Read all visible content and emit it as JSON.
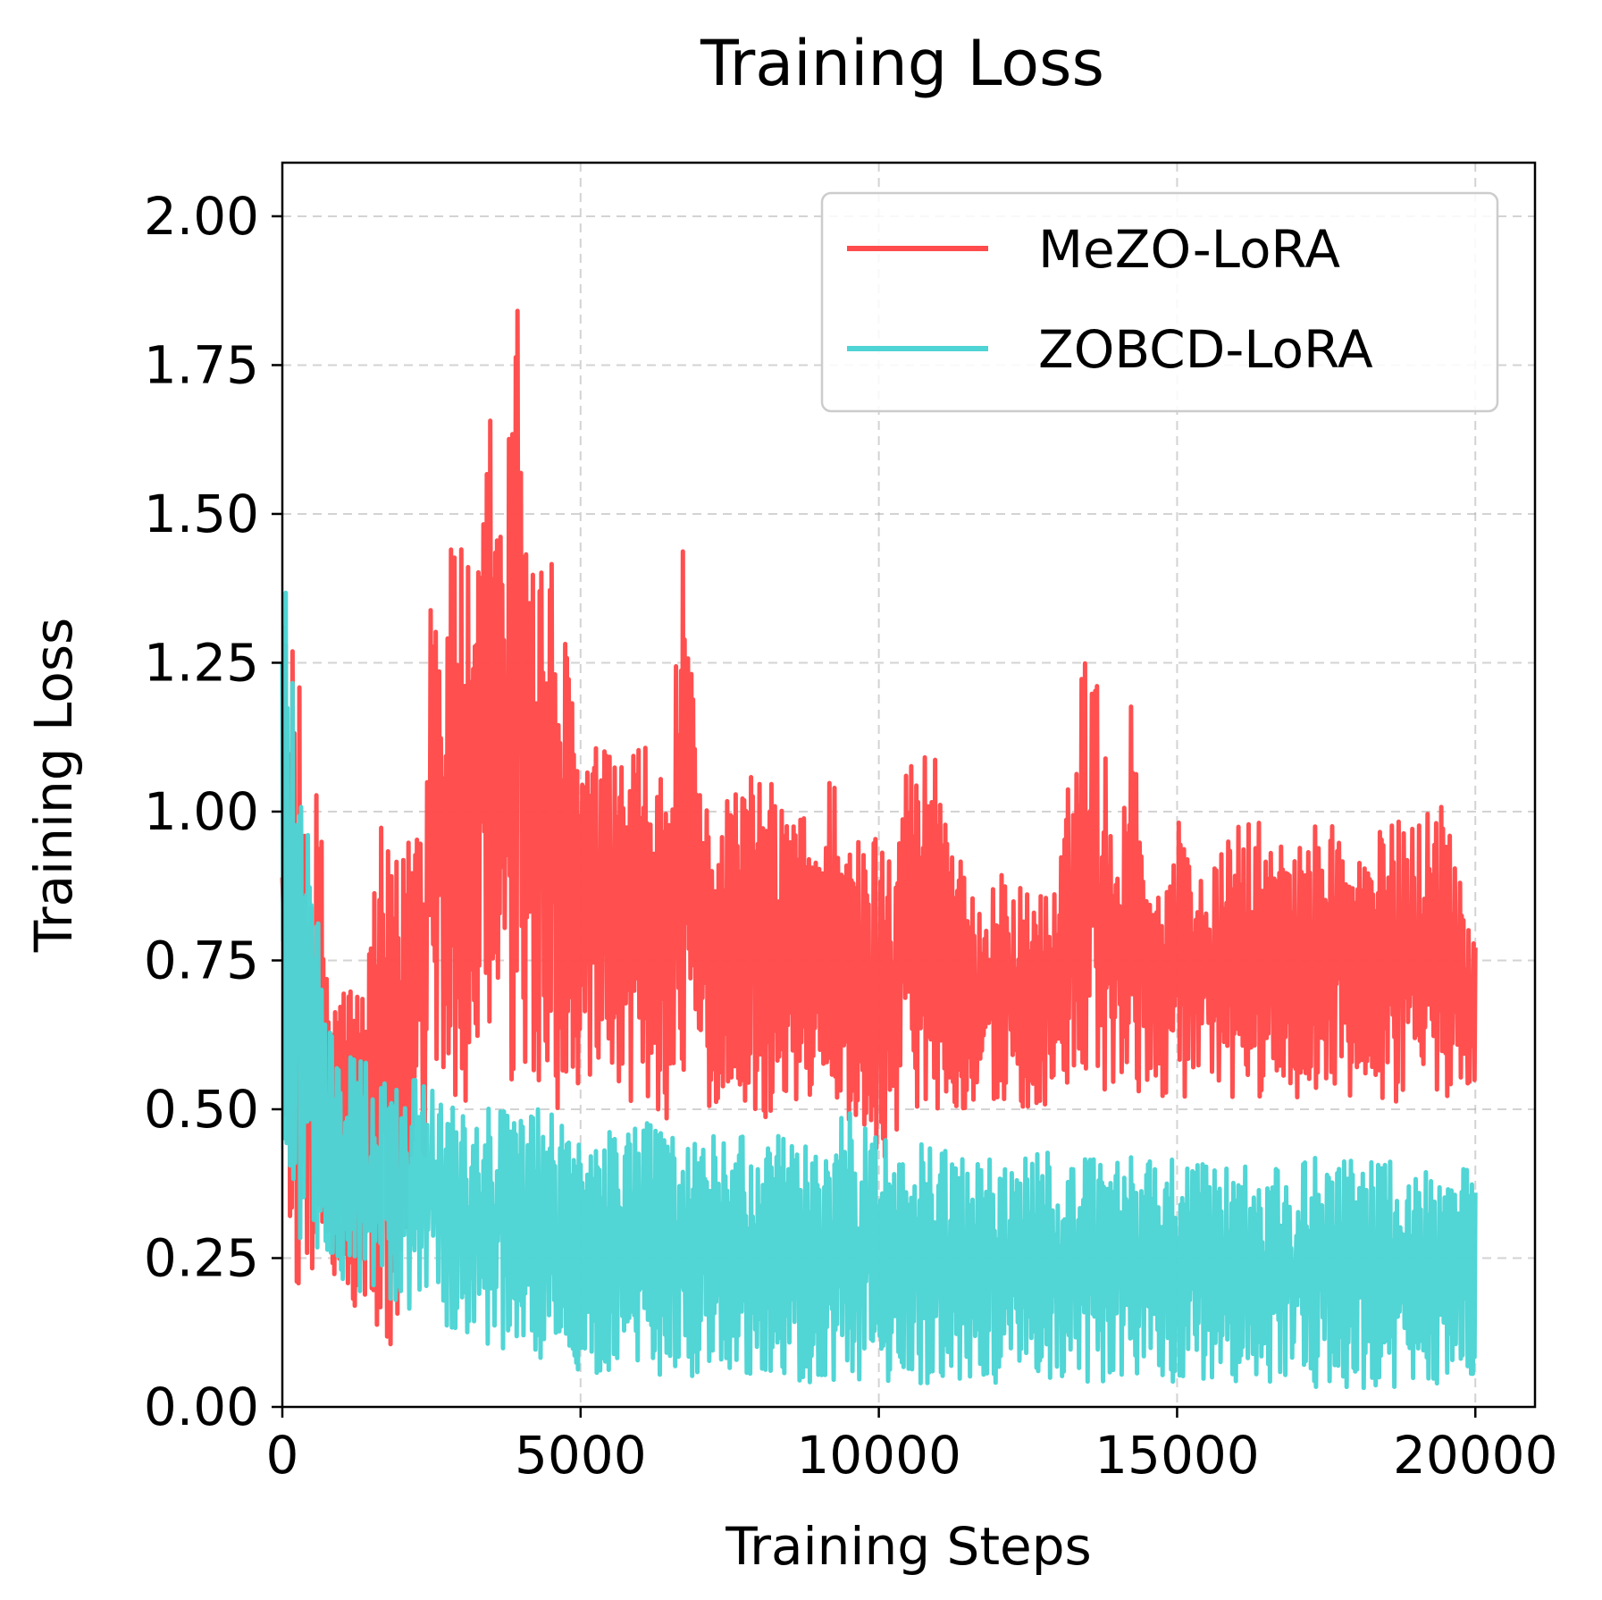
{
  "chart_data": {
    "type": "line",
    "title": "Training Loss",
    "xlabel": "Training Steps",
    "ylabel": "Training Loss",
    "xlim": [
      0,
      21000
    ],
    "ylim": [
      0,
      2.09
    ],
    "xticks": [
      0,
      5000,
      10000,
      15000,
      20000
    ],
    "xtick_labels": [
      "0",
      "5000",
      "10000",
      "15000",
      "20000"
    ],
    "yticks": [
      0.0,
      0.25,
      0.5,
      0.75,
      1.0,
      1.25,
      1.5,
      1.75,
      2.0
    ],
    "ytick_labels": [
      "0.00",
      "0.25",
      "0.50",
      "0.75",
      "1.00",
      "1.25",
      "1.50",
      "1.75",
      "2.00"
    ],
    "grid": true,
    "legend_position": "top-right",
    "series": [
      {
        "name": "MeZO-LoRA",
        "color": "#ff4b4b",
        "x": [
          0,
          100,
          200,
          300,
          400,
          500,
          600,
          700,
          800,
          900,
          1000,
          1200,
          1400,
          1500,
          1600,
          1800,
          2000,
          2200,
          2400,
          2500,
          2700,
          3000,
          3200,
          3500,
          3700,
          4000,
          4200,
          4500,
          5000,
          5500,
          6000,
          6500,
          6700,
          7000,
          7500,
          8000,
          8500,
          9000,
          9300,
          9500,
          10000,
          10500,
          11000,
          11500,
          12000,
          12500,
          13000,
          13500,
          14000,
          14300,
          14500,
          15000,
          15500,
          16000,
          16500,
          17000,
          17500,
          18000,
          18500,
          19000,
          19500,
          20000
        ],
        "upper": [
          1.35,
          1.3,
          1.28,
          1.2,
          1.05,
          0.98,
          1.07,
          0.9,
          0.75,
          0.72,
          0.72,
          0.75,
          0.7,
          0.87,
          0.99,
          0.93,
          0.92,
          1.06,
          1.1,
          1.5,
          1.35,
          1.57,
          1.3,
          1.73,
          1.49,
          1.98,
          1.5,
          1.45,
          1.14,
          1.1,
          1.12,
          1.05,
          1.46,
          1.03,
          1.05,
          1.07,
          1.02,
          0.98,
          1.14,
          0.95,
          0.98,
          1.1,
          1.14,
          0.85,
          0.9,
          0.87,
          0.88,
          1.35,
          0.95,
          1.26,
          0.85,
          1.0,
          0.88,
          0.99,
          0.98,
          0.93,
          1.02,
          0.93,
          0.98,
          1.0,
          1.04,
          0.8
        ],
        "lower": [
          0.4,
          0.22,
          0.2,
          0.18,
          0.2,
          0.22,
          0.2,
          0.25,
          0.22,
          0.2,
          0.2,
          0.15,
          0.13,
          0.1,
          0.1,
          0.08,
          0.06,
          0.35,
          0.4,
          0.45,
          0.48,
          0.5,
          0.5,
          0.52,
          0.5,
          0.48,
          0.5,
          0.5,
          0.5,
          0.5,
          0.5,
          0.48,
          0.48,
          0.5,
          0.5,
          0.48,
          0.5,
          0.52,
          0.5,
          0.48,
          0.4,
          0.5,
          0.5,
          0.5,
          0.5,
          0.5,
          0.5,
          0.5,
          0.52,
          0.52,
          0.52,
          0.52,
          0.52,
          0.5,
          0.52,
          0.52,
          0.52,
          0.5,
          0.5,
          0.52,
          0.52,
          0.55
        ]
      },
      {
        "name": "ZOBCD-LoRA",
        "color": "#4ed4d4",
        "x": [
          0,
          100,
          200,
          300,
          400,
          500,
          600,
          700,
          800,
          1000,
          1200,
          1500,
          1800,
          2000,
          2200,
          2400,
          2600,
          2800,
          3000,
          3500,
          4000,
          4500,
          5000,
          5500,
          6000,
          6500,
          7000,
          7500,
          8000,
          8500,
          9000,
          9500,
          10000,
          10500,
          11000,
          11500,
          12000,
          12500,
          13000,
          13500,
          14000,
          14500,
          15000,
          15500,
          16000,
          16500,
          17000,
          17300,
          17500,
          18000,
          18500,
          19000,
          19500,
          20000
        ],
        "upper": [
          1.5,
          1.48,
          1.3,
          1.25,
          1.1,
          0.9,
          0.87,
          0.7,
          0.65,
          0.6,
          0.6,
          0.57,
          0.56,
          0.55,
          0.56,
          0.55,
          0.55,
          0.54,
          0.52,
          0.52,
          0.5,
          0.5,
          0.48,
          0.48,
          0.48,
          0.47,
          0.47,
          0.46,
          0.45,
          0.46,
          0.45,
          0.5,
          0.45,
          0.45,
          0.44,
          0.42,
          0.42,
          0.43,
          0.43,
          0.42,
          0.42,
          0.42,
          0.42,
          0.42,
          0.42,
          0.42,
          0.42,
          0.42,
          0.42,
          0.42,
          0.42,
          0.4,
          0.4,
          0.42
        ],
        "lower": [
          0.3,
          0.28,
          0.28,
          0.28,
          0.28,
          0.28,
          0.25,
          0.23,
          0.22,
          0.2,
          0.2,
          0.18,
          0.17,
          0.15,
          0.15,
          0.15,
          0.14,
          0.13,
          0.12,
          0.1,
          0.08,
          0.07,
          0.06,
          0.05,
          0.05,
          0.05,
          0.05,
          0.04,
          0.04,
          0.04,
          0.04,
          0.04,
          0.04,
          0.04,
          0.04,
          0.04,
          0.04,
          0.04,
          0.04,
          0.04,
          0.04,
          0.04,
          0.04,
          0.04,
          0.04,
          0.04,
          0.03,
          0.03,
          0.03,
          0.03,
          0.03,
          0.03,
          0.03,
          0.03
        ]
      }
    ]
  }
}
